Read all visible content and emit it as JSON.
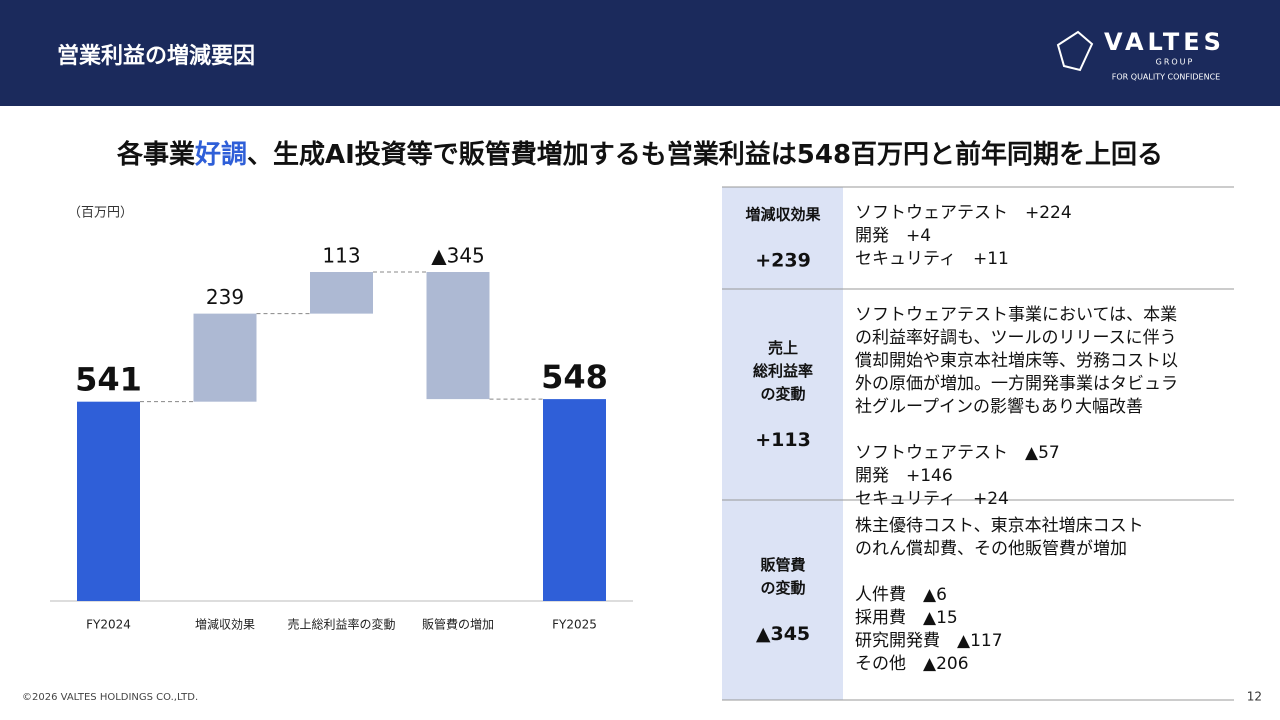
{
  "header": {
    "title": "営業利益の増減要因",
    "logo": {
      "name": "VALTES",
      "group": "GROUP",
      "tagline": "FOR QUALITY CONFIDENCE"
    }
  },
  "headline": [
    "各事業",
    "好調",
    "、生成AI投資等で販管費増加するも営業利益は548百万円と前年同期を上回る"
  ],
  "chart_data": {
    "type": "waterfall",
    "y_label": "（百万円）",
    "categories": [
      "FY2024",
      "増減収効果",
      "売上総利益率の変動",
      "販管費の増加",
      "FY2025"
    ],
    "values": [
      541,
      239,
      113,
      -345,
      548
    ],
    "value_labels": [
      "541",
      "239",
      "113",
      "▲345",
      "548"
    ],
    "measure": [
      "absolute",
      "relative",
      "relative",
      "relative",
      "total"
    ],
    "total_color": "#2f5fd8",
    "delta_color": "#adb9d3"
  },
  "table": {
    "rows": [
      {
        "label": [
          "増減収効果"
        ],
        "value": "+239",
        "description": [],
        "details": [
          "ソフトウェアテスト　+224",
          "開発　+4",
          "セキュリティ　+11"
        ]
      },
      {
        "label": [
          "売上",
          "総利益率",
          "の変動"
        ],
        "value": "+113",
        "description": [
          "ソフトウェアテスト事業においては、本業",
          "の利益率好調も、ツールのリリースに伴う",
          "償却開始や東京本社増床等、労務コスト以",
          "外の原価が増加。一方開発事業はタビュラ",
          "社グループインの影響もあり大幅改善"
        ],
        "details": [
          "ソフトウェアテスト　▲57",
          "開発　+146",
          "セキュリティ　+24"
        ]
      },
      {
        "label": [
          "販管費",
          "の変動"
        ],
        "value": "▲345",
        "description": [
          "株主優待コスト、東京本社増床コスト",
          "のれん償却費、その他販管費が増加"
        ],
        "details": [
          "人件費　▲6",
          "採用費　▲15",
          "研究開発費　▲117",
          "その他　▲206"
        ]
      }
    ]
  },
  "footer": {
    "copyright": "©2026 VALTES HOLDINGS CO.,LTD.",
    "page": "12"
  }
}
